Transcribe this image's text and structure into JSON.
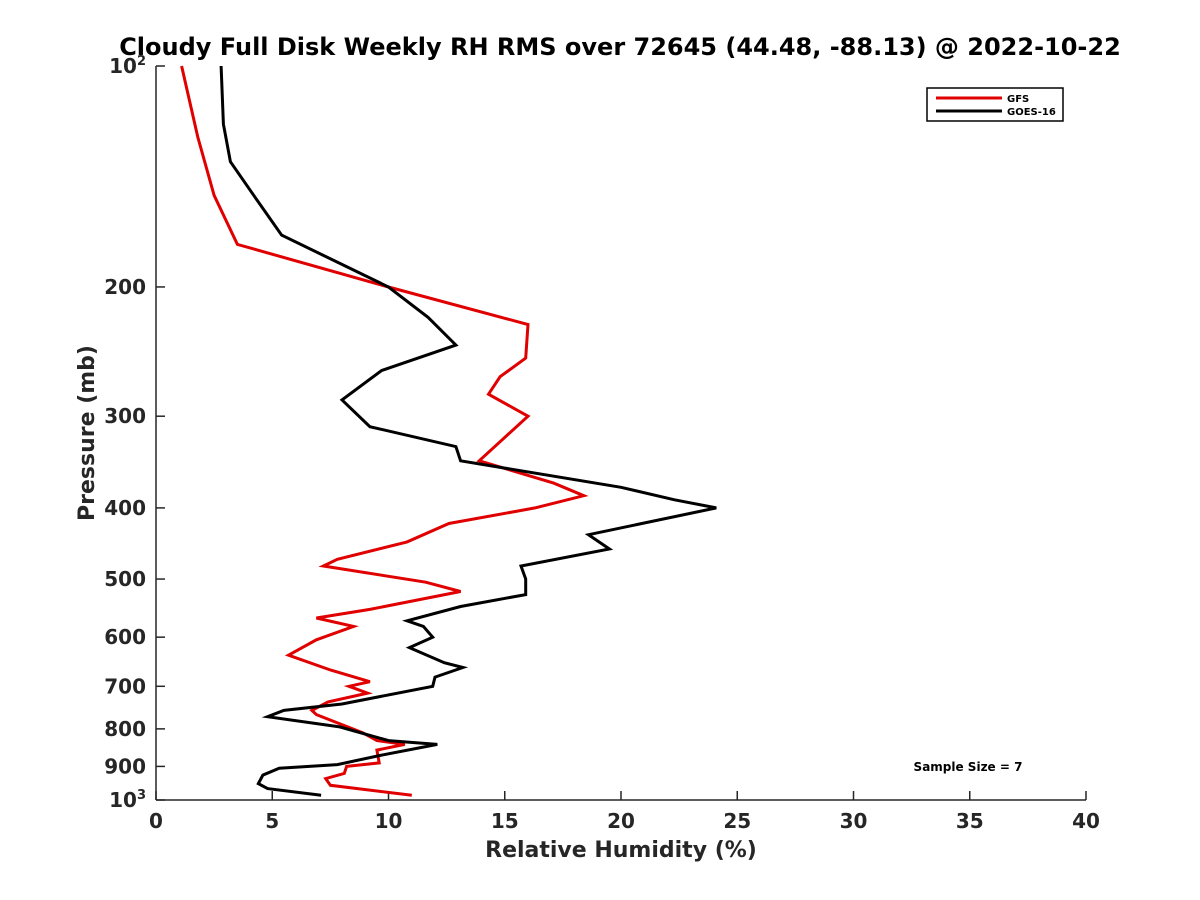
{
  "chart_data": {
    "type": "line",
    "title": "Cloudy Full Disk Weekly RH RMS over 72645 (44.48, -88.13) @ 2022-10-22",
    "xlabel": "Relative Humidity (%)",
    "ylabel": "Pressure (mb)",
    "xlim": [
      0,
      40
    ],
    "ylim": [
      100,
      1000
    ],
    "yscale": "log",
    "yreversed": true,
    "x_ticks": [
      0,
      5,
      10,
      15,
      20,
      25,
      30,
      35,
      40
    ],
    "y_ticks": [
      {
        "value": 100,
        "base": "10",
        "exp": "2"
      },
      {
        "value": 200,
        "label": "200"
      },
      {
        "value": 300,
        "label": "300"
      },
      {
        "value": 400,
        "label": "400"
      },
      {
        "value": 500,
        "label": "500"
      },
      {
        "value": 600,
        "label": "600"
      },
      {
        "value": 700,
        "label": "700"
      },
      {
        "value": 800,
        "label": "800"
      },
      {
        "value": 900,
        "label": "900"
      },
      {
        "value": 1000,
        "base": "10",
        "exp": "3"
      }
    ],
    "grid": false,
    "legend_position": "top-right",
    "annotation": "Sample Size = 7",
    "series": [
      {
        "name": "GFS",
        "color": "#e00000",
        "points": [
          [
            1.1,
            100
          ],
          [
            1.8,
            125
          ],
          [
            2.5,
            150
          ],
          [
            3.5,
            175
          ],
          [
            10,
            200
          ],
          [
            16.0,
            225
          ],
          [
            15.9,
            250
          ],
          [
            14.8,
            265
          ],
          [
            14.3,
            280
          ],
          [
            16.0,
            300
          ],
          [
            14.8,
            325
          ],
          [
            13.9,
            345
          ],
          [
            17.1,
            370
          ],
          [
            18.4,
            385
          ],
          [
            16.3,
            400
          ],
          [
            12.6,
            420
          ],
          [
            10.8,
            445
          ],
          [
            7.8,
            470
          ],
          [
            7.2,
            480
          ],
          [
            11.6,
            505
          ],
          [
            13.1,
            520
          ],
          [
            9.2,
            550
          ],
          [
            6.9,
            565
          ],
          [
            8.5,
            580
          ],
          [
            6.9,
            605
          ],
          [
            5.7,
            635
          ],
          [
            7.5,
            665
          ],
          [
            9.2,
            690
          ],
          [
            8.3,
            700
          ],
          [
            9.1,
            715
          ],
          [
            7.4,
            735
          ],
          [
            6.7,
            755
          ],
          [
            6.9,
            765
          ],
          [
            8.9,
            810
          ],
          [
            9.5,
            830
          ],
          [
            10.7,
            840
          ],
          [
            9.5,
            855
          ],
          [
            9.6,
            890
          ],
          [
            8.2,
            900
          ],
          [
            8.1,
            920
          ],
          [
            7.3,
            935
          ],
          [
            7.5,
            955
          ],
          [
            11.0,
            985
          ]
        ]
      },
      {
        "name": "GOES-16",
        "color": "#000000",
        "points": [
          [
            2.8,
            100
          ],
          [
            2.9,
            120
          ],
          [
            3.2,
            135
          ],
          [
            4.2,
            150
          ],
          [
            5.4,
            170
          ],
          [
            10,
            200
          ],
          [
            11.7,
            220
          ],
          [
            12.9,
            240
          ],
          [
            9.7,
            260
          ],
          [
            8.0,
            285
          ],
          [
            9.2,
            310
          ],
          [
            12.9,
            330
          ],
          [
            13.1,
            345
          ],
          [
            20.0,
            375
          ],
          [
            22.3,
            390
          ],
          [
            24.1,
            400
          ],
          [
            18.6,
            435
          ],
          [
            19.5,
            455
          ],
          [
            15.7,
            480
          ],
          [
            15.9,
            500
          ],
          [
            15.9,
            525
          ],
          [
            13.1,
            545
          ],
          [
            10.8,
            570
          ],
          [
            11.5,
            580
          ],
          [
            11.9,
            600
          ],
          [
            10.9,
            620
          ],
          [
            12.4,
            650
          ],
          [
            13.2,
            660
          ],
          [
            12.0,
            680
          ],
          [
            11.9,
            700
          ],
          [
            8.0,
            740
          ],
          [
            5.5,
            755
          ],
          [
            4.8,
            770
          ],
          [
            7.9,
            795
          ],
          [
            10.0,
            830
          ],
          [
            12.1,
            840
          ],
          [
            9.6,
            870
          ],
          [
            7.8,
            895
          ],
          [
            5.3,
            905
          ],
          [
            4.6,
            925
          ],
          [
            4.4,
            950
          ],
          [
            4.8,
            965
          ],
          [
            7.1,
            985
          ]
        ]
      }
    ]
  }
}
